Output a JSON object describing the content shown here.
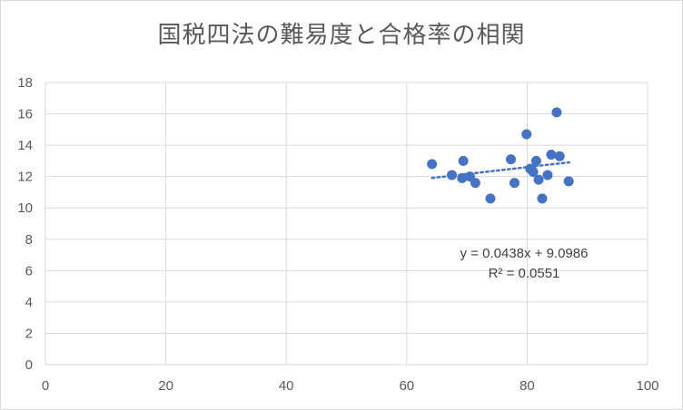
{
  "chart_data": {
    "type": "scatter",
    "title": "国税四法の難易度と合格率の相関",
    "xlabel": "",
    "ylabel": "",
    "xlim": [
      0,
      100
    ],
    "ylim": [
      0,
      18
    ],
    "x_ticks": [
      "0",
      "20",
      "40",
      "60",
      "80",
      "100"
    ],
    "y_ticks": [
      "0",
      "2",
      "4",
      "6",
      "8",
      "10",
      "12",
      "14",
      "16",
      "18"
    ],
    "grid": true,
    "legend": "none",
    "series": [
      {
        "color": "#4472c4",
        "points": [
          [
            64.2,
            12.8
          ],
          [
            67.5,
            12.1
          ],
          [
            69.2,
            11.9
          ],
          [
            69.4,
            13.0
          ],
          [
            70.5,
            12.0
          ],
          [
            71.4,
            11.6
          ],
          [
            73.9,
            10.6
          ],
          [
            77.3,
            13.1
          ],
          [
            77.9,
            11.6
          ],
          [
            79.9,
            14.7
          ],
          [
            80.5,
            12.5
          ],
          [
            81.0,
            12.3
          ],
          [
            81.5,
            13.0
          ],
          [
            81.9,
            11.8
          ],
          [
            82.5,
            10.6
          ],
          [
            83.4,
            12.1
          ],
          [
            84.0,
            13.4
          ],
          [
            84.9,
            16.1
          ],
          [
            85.4,
            13.3
          ],
          [
            86.9,
            11.7
          ]
        ]
      }
    ],
    "trendline": {
      "type": "linear",
      "slope": 0.0438,
      "intercept": 9.0986,
      "x_range": [
        64.2,
        87.0
      ],
      "color": "#4472c4",
      "equation": "y = 0.0438x + 9.0986",
      "r_squared": "R² = 0.0551"
    }
  }
}
